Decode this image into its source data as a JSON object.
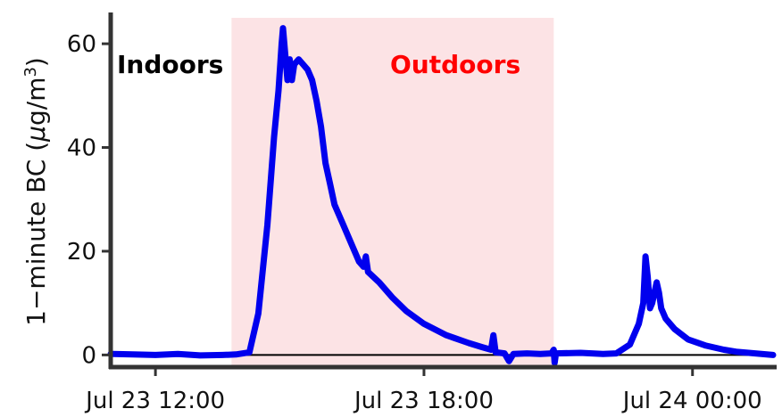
{
  "chart_data": {
    "type": "line",
    "xlabel": "",
    "ylabel": "1−minute BC (μg/m³)",
    "ylabel_parts": {
      "prefix": "1−minute BC (",
      "mu": "μ",
      "unit": "g/m",
      "sup": "3",
      "suffix": ")"
    },
    "ylim": [
      -2,
      65
    ],
    "xlim_hours": [
      -1.0,
      13.8
    ],
    "x_ticks": [
      {
        "label": "Jul 23 12:00",
        "hour": 0
      },
      {
        "label": "Jul 23 18:00",
        "hour": 6
      },
      {
        "label": "Jul 24 00:00",
        "hour": 12
      }
    ],
    "y_ticks": [
      0,
      20,
      40,
      60
    ],
    "grid": false,
    "hline_y": 0,
    "shaded_region": {
      "from_hour": 1.7,
      "to_hour": 8.9,
      "color": "#fce3e5"
    },
    "annotations": [
      {
        "text": "Indoors",
        "color": "#000000"
      },
      {
        "text": "Outdoors",
        "color": "#ff0000"
      }
    ],
    "series": [
      {
        "color": "#0000ee",
        "points": [
          [
            -1.0,
            0.2
          ],
          [
            -0.5,
            0.1
          ],
          [
            0.0,
            0.0
          ],
          [
            0.5,
            0.2
          ],
          [
            1.0,
            -0.1
          ],
          [
            1.5,
            0.0
          ],
          [
            1.8,
            0.1
          ],
          [
            2.1,
            0.5
          ],
          [
            2.3,
            8
          ],
          [
            2.5,
            25
          ],
          [
            2.65,
            42
          ],
          [
            2.75,
            51
          ],
          [
            2.82,
            60
          ],
          [
            2.85,
            63
          ],
          [
            2.9,
            58
          ],
          [
            2.95,
            53
          ],
          [
            3.0,
            57
          ],
          [
            3.05,
            53
          ],
          [
            3.1,
            56
          ],
          [
            3.2,
            57
          ],
          [
            3.3,
            56
          ],
          [
            3.4,
            55
          ],
          [
            3.5,
            53
          ],
          [
            3.6,
            49
          ],
          [
            3.7,
            44
          ],
          [
            3.8,
            37
          ],
          [
            3.9,
            33
          ],
          [
            4.0,
            29
          ],
          [
            4.2,
            25
          ],
          [
            4.4,
            21
          ],
          [
            4.55,
            18
          ],
          [
            4.65,
            17
          ],
          [
            4.7,
            19
          ],
          [
            4.75,
            16
          ],
          [
            5.0,
            14
          ],
          [
            5.3,
            11
          ],
          [
            5.6,
            8.5
          ],
          [
            6.0,
            6
          ],
          [
            6.5,
            3.8
          ],
          [
            7.0,
            2.3
          ],
          [
            7.3,
            1.5
          ],
          [
            7.5,
            1.0
          ],
          [
            7.55,
            3.8
          ],
          [
            7.6,
            0.5
          ],
          [
            7.8,
            0.3
          ],
          [
            7.9,
            -1.2
          ],
          [
            8.0,
            0.2
          ],
          [
            8.3,
            0.3
          ],
          [
            8.6,
            0.2
          ],
          [
            8.85,
            0.3
          ],
          [
            8.9,
            1.0
          ],
          [
            8.92,
            -1.5
          ],
          [
            8.95,
            0.3
          ],
          [
            9.5,
            0.4
          ],
          [
            10.0,
            0.2
          ],
          [
            10.3,
            0.3
          ],
          [
            10.6,
            2
          ],
          [
            10.8,
            6
          ],
          [
            10.9,
            10
          ],
          [
            10.95,
            19
          ],
          [
            11.0,
            15
          ],
          [
            11.05,
            9
          ],
          [
            11.1,
            10
          ],
          [
            11.2,
            14
          ],
          [
            11.25,
            12
          ],
          [
            11.3,
            9
          ],
          [
            11.4,
            7
          ],
          [
            11.6,
            5
          ],
          [
            11.9,
            3
          ],
          [
            12.3,
            1.8
          ],
          [
            12.7,
            1.0
          ],
          [
            13.0,
            0.6
          ],
          [
            13.4,
            0.3
          ],
          [
            13.8,
            0.0
          ]
        ]
      }
    ]
  }
}
